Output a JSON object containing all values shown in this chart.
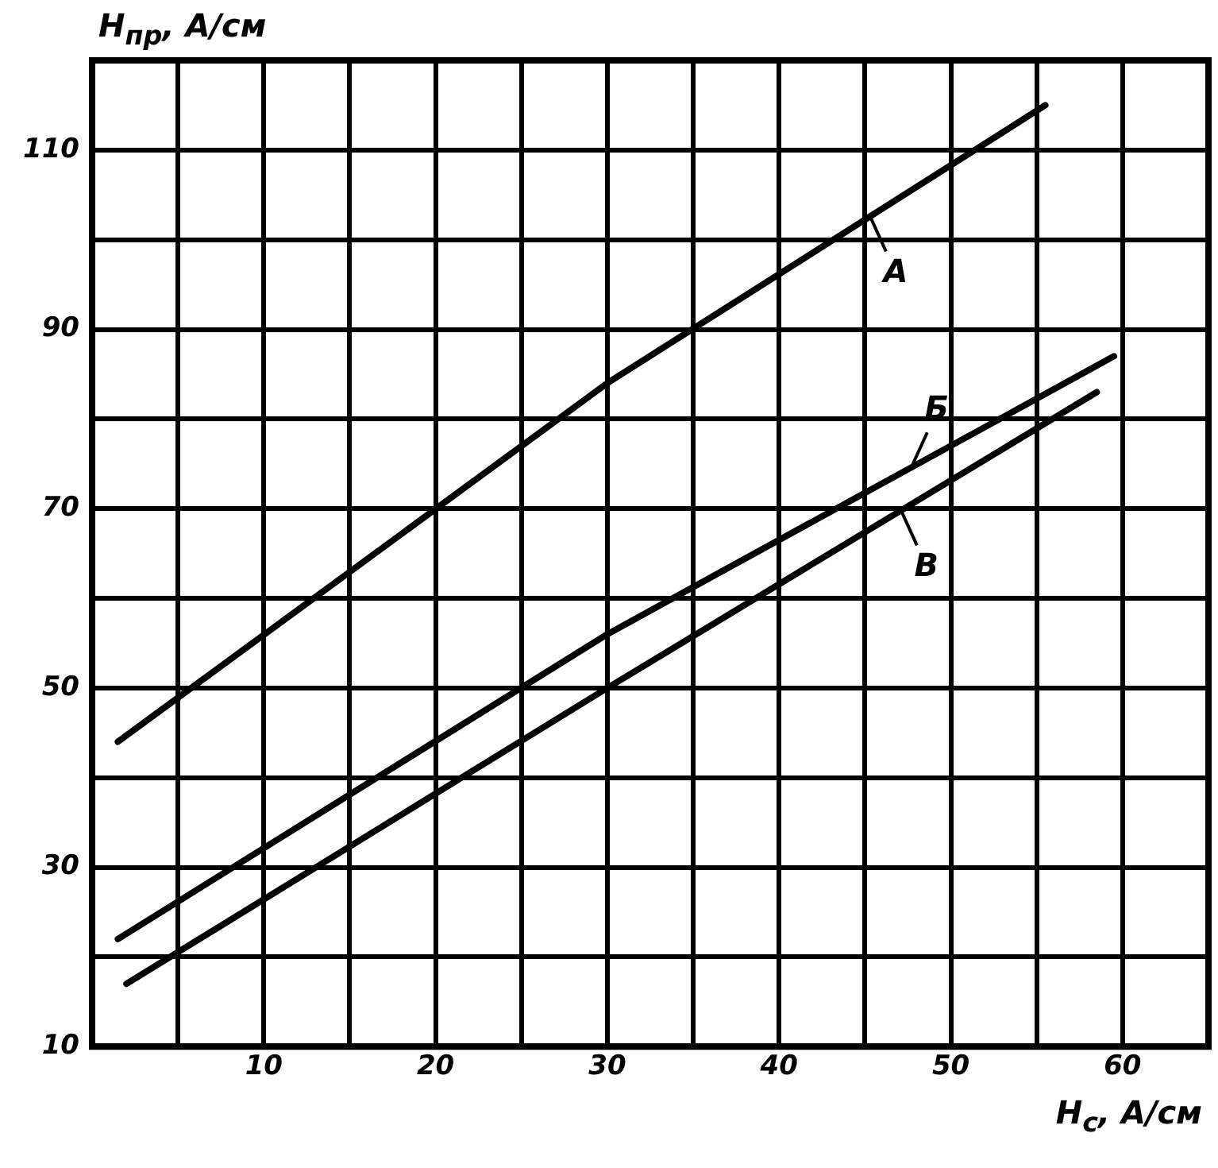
{
  "chart_data": {
    "type": "line",
    "xlabel": "H$_{с}$, А/см",
    "ylabel": "H$_{пр}$, А/см",
    "series": [
      {
        "name": "А",
        "color": "#000000",
        "x": [
          1.5,
          30,
          55.5
        ],
        "values": [
          44,
          84,
          115
        ]
      },
      {
        "name": "Б",
        "color": "#000000",
        "x": [
          1.5,
          30,
          59.5
        ],
        "values": [
          22,
          56,
          87
        ]
      },
      {
        "name": "В",
        "color": "#000000",
        "x": [
          2,
          30,
          58.5
        ],
        "values": [
          17,
          50,
          83
        ]
      }
    ],
    "xlim": [
      0,
      65
    ],
    "ylim": [
      10,
      120
    ],
    "xticks": [
      {
        "value": 5,
        "label": null
      },
      10,
      {
        "value": 15,
        "label": null
      },
      20,
      {
        "value": 25,
        "label": null
      },
      30,
      {
        "value": 35,
        "label": null
      },
      40,
      {
        "value": 45,
        "label": null
      },
      50,
      {
        "value": 55,
        "label": null
      },
      60
    ],
    "yticks": [
      10,
      {
        "value": 20,
        "label": null
      },
      30,
      {
        "value": 40,
        "label": null
      },
      50,
      {
        "value": 60,
        "label": null
      },
      70,
      {
        "value": 80,
        "label": null
      },
      90,
      {
        "value": 100,
        "label": null
      },
      110
    ],
    "grid": true,
    "legend": "right",
    "marker": "none",
    "line_style": "solid"
  }
}
